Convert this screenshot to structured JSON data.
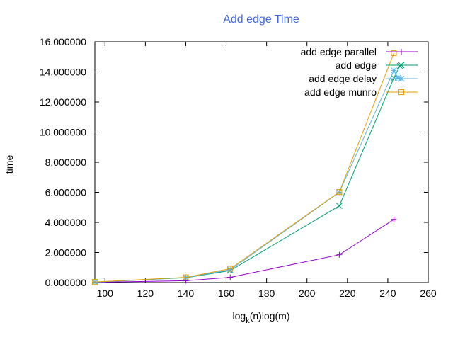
{
  "chart_data": {
    "type": "line",
    "title": "Add edge Time",
    "title_color": "#4169e1",
    "xlabel_main": "log",
    "xlabel_sub": "k",
    "xlabel_rest": "(n)log(m)",
    "ylabel": "time",
    "xlim": [
      95,
      260
    ],
    "ylim": [
      0,
      16
    ],
    "xticks": [
      100,
      120,
      140,
      160,
      180,
      200,
      220,
      240,
      260
    ],
    "yticks": [
      0,
      2,
      4,
      6,
      8,
      10,
      12,
      14,
      16
    ],
    "ytick_labels": [
      "0.000000",
      "2.000000",
      "4.000000",
      "6.000000",
      "8.000000",
      "10.000000",
      "12.000000",
      "14.000000",
      "16.000000"
    ],
    "grid": false,
    "legend_position": "top-right",
    "series": [
      {
        "name": "add edge parallel",
        "color": "#9400d3",
        "marker": "plus",
        "x": [
          95,
          140,
          162,
          216,
          243
        ],
        "y": [
          0.02,
          0.12,
          0.35,
          1.85,
          4.2
        ]
      },
      {
        "name": "add edge",
        "color": "#009e73",
        "marker": "cross",
        "x": [
          95,
          140,
          162,
          216,
          243,
          246
        ],
        "y": [
          0.03,
          0.32,
          0.8,
          5.1,
          13.6,
          14.4
        ]
      },
      {
        "name": "add edge delay",
        "color": "#56b4e9",
        "marker": "star",
        "x": [
          95,
          140,
          162,
          216,
          243,
          245
        ],
        "y": [
          0.03,
          0.33,
          0.85,
          6.0,
          14.1,
          13.6
        ]
      },
      {
        "name": "add edge munro",
        "color": "#e69f00",
        "marker": "square",
        "x": [
          95,
          140,
          162,
          216,
          243
        ],
        "y": [
          0.04,
          0.35,
          0.92,
          6.02,
          15.25
        ]
      }
    ]
  }
}
